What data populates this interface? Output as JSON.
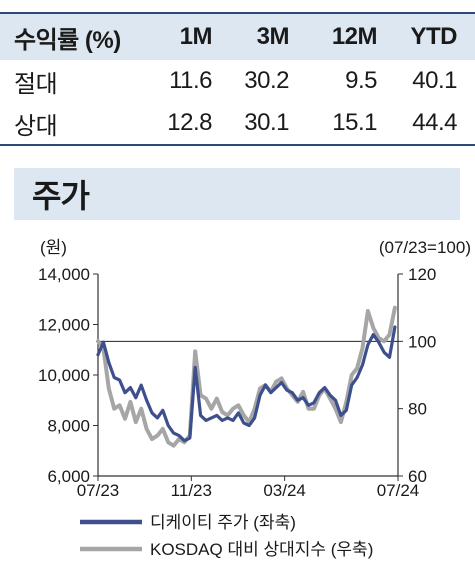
{
  "returns_table": {
    "header": {
      "label": "수익률 (%)",
      "cols": [
        "1M",
        "3M",
        "12M",
        "YTD"
      ]
    },
    "rows": [
      {
        "label": "절대",
        "values": [
          "11.6",
          "30.2",
          "9.5",
          "40.1"
        ]
      },
      {
        "label": "상대",
        "values": [
          "12.8",
          "30.1",
          "15.1",
          "44.4"
        ]
      }
    ]
  },
  "section": {
    "title": "주가"
  },
  "chart_data": {
    "type": "line",
    "left_axis_unit": "(원)",
    "right_axis_unit": "(07/23=100)",
    "x_ticks": [
      "07/23",
      "11/23",
      "03/24",
      "07/24"
    ],
    "y_left": {
      "min": 6000,
      "max": 14000,
      "ticks": [
        "6,000",
        "8,000",
        "10,000",
        "12,000",
        "14,000"
      ]
    },
    "y_right": {
      "min": 60,
      "max": 120,
      "ticks": [
        "60",
        "80",
        "100",
        "120"
      ]
    },
    "reference_line_right": 100,
    "grid": false,
    "legend_position": "bottom",
    "series": [
      {
        "name": "디케이티 주가 (좌축)",
        "axis": "left",
        "color": "#3d4f8c",
        "x": [
          "2023-07-03",
          "2023-07-10",
          "2023-07-17",
          "2023-07-24",
          "2023-07-31",
          "2023-08-07",
          "2023-08-14",
          "2023-08-21",
          "2023-08-28",
          "2023-09-04",
          "2023-09-11",
          "2023-09-18",
          "2023-09-25",
          "2023-10-02",
          "2023-10-09",
          "2023-10-16",
          "2023-10-23",
          "2023-10-30",
          "2023-11-06",
          "2023-11-13",
          "2023-11-20",
          "2023-11-27",
          "2023-12-04",
          "2023-12-11",
          "2023-12-18",
          "2023-12-25",
          "2024-01-01",
          "2024-01-08",
          "2024-01-15",
          "2024-01-22",
          "2024-01-29",
          "2024-02-05",
          "2024-02-12",
          "2024-02-19",
          "2024-02-26",
          "2024-03-04",
          "2024-03-11",
          "2024-03-18",
          "2024-03-25",
          "2024-04-01",
          "2024-04-08",
          "2024-04-15",
          "2024-04-22",
          "2024-04-29",
          "2024-05-06",
          "2024-05-13",
          "2024-05-20",
          "2024-05-27",
          "2024-06-03",
          "2024-06-10",
          "2024-06-17",
          "2024-06-24",
          "2024-07-01",
          "2024-07-08",
          "2024-07-15",
          "2024-07-22"
        ],
        "values": [
          10800,
          11300,
          10500,
          9900,
          9800,
          9300,
          9500,
          9100,
          9600,
          9000,
          8500,
          8300,
          8600,
          8000,
          7700,
          7600,
          7400,
          7500,
          10300,
          8400,
          8200,
          8300,
          8400,
          8200,
          8300,
          8200,
          8500,
          8100,
          8000,
          8300,
          9200,
          9600,
          9300,
          9500,
          9700,
          9400,
          9300,
          9000,
          9100,
          8800,
          8900,
          9300,
          9500,
          9200,
          9000,
          8400,
          8600,
          9600,
          9900,
          10400,
          11200,
          11600,
          11300,
          10900,
          10700,
          11900
        ]
      },
      {
        "name": "KOSDAQ 대비 상대지수 (우축)",
        "axis": "right",
        "color": "#a6a6a6",
        "x": [
          "2023-07-03",
          "2023-07-10",
          "2023-07-17",
          "2023-07-24",
          "2023-07-31",
          "2023-08-07",
          "2023-08-14",
          "2023-08-21",
          "2023-08-28",
          "2023-09-04",
          "2023-09-11",
          "2023-09-18",
          "2023-09-25",
          "2023-10-02",
          "2023-10-09",
          "2023-10-16",
          "2023-10-23",
          "2023-10-30",
          "2023-11-06",
          "2023-11-13",
          "2023-11-20",
          "2023-11-27",
          "2023-12-04",
          "2023-12-11",
          "2023-12-18",
          "2023-12-25",
          "2024-01-01",
          "2024-01-08",
          "2024-01-15",
          "2024-01-22",
          "2024-01-29",
          "2024-02-05",
          "2024-02-12",
          "2024-02-19",
          "2024-02-26",
          "2024-03-04",
          "2024-03-11",
          "2024-03-18",
          "2024-03-25",
          "2024-04-01",
          "2024-04-08",
          "2024-04-15",
          "2024-04-22",
          "2024-04-29",
          "2024-05-06",
          "2024-05-13",
          "2024-05-20",
          "2024-05-27",
          "2024-06-03",
          "2024-06-10",
          "2024-06-17",
          "2024-06-24",
          "2024-07-01",
          "2024-07-08",
          "2024-07-15",
          "2024-07-22"
        ],
        "values": [
          100,
          98,
          86,
          80,
          81,
          77,
          82,
          76,
          80,
          74,
          71,
          72,
          74,
          70,
          69,
          71,
          70,
          72,
          97,
          84,
          83,
          80,
          83,
          79,
          78,
          80,
          81,
          78,
          76,
          80,
          86,
          87,
          85,
          88,
          89,
          86,
          84,
          82,
          85,
          80,
          80,
          84,
          86,
          83,
          80,
          76,
          82,
          90,
          92,
          98,
          109,
          104,
          101,
          100,
          102,
          110
        ]
      }
    ]
  }
}
